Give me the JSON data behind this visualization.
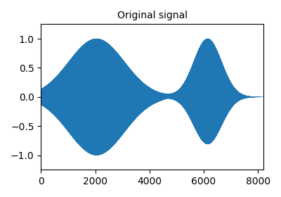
{
  "title": "Original signal",
  "xlim": [
    0,
    8192
  ],
  "ylim": [
    -1.25,
    1.25
  ],
  "xticks": [
    0,
    2000,
    4000,
    6000,
    8000
  ],
  "yticks": [
    -1.0,
    -0.5,
    0.0,
    0.5,
    1.0
  ],
  "line_color": "#1f77b4",
  "background_color": "#ffffff",
  "n_samples": 8192,
  "title_fontsize": 10,
  "linewidth": 0.4
}
